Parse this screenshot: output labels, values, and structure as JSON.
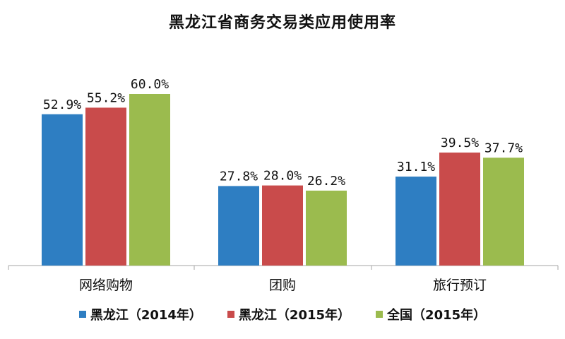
{
  "chart_data": {
    "type": "bar",
    "title": "黑龙江省商务交易类应用使用率",
    "categories": [
      "网络购物",
      "团购",
      "旅行预订"
    ],
    "series": [
      {
        "name": "黑龙江（2014年）",
        "values": [
          52.9,
          27.8,
          31.1
        ],
        "labels": [
          "52.9%",
          "27.8%",
          "31.1%"
        ],
        "color": "#2e7ec2"
      },
      {
        "name": "黑龙江（2015年）",
        "values": [
          55.2,
          28.0,
          39.5
        ],
        "labels": [
          "55.2%",
          "28.0%",
          "39.5%"
        ],
        "color": "#c94b4b"
      },
      {
        "name": "全国（2015年）",
        "values": [
          60.0,
          26.2,
          37.7
        ],
        "labels": [
          "60.0%",
          "26.2%",
          "37.7%"
        ],
        "color": "#9bbb4e"
      }
    ],
    "ylim": [
      0,
      70
    ],
    "xlabel": "",
    "ylabel": "",
    "grid": false,
    "legend_position": "bottom"
  }
}
